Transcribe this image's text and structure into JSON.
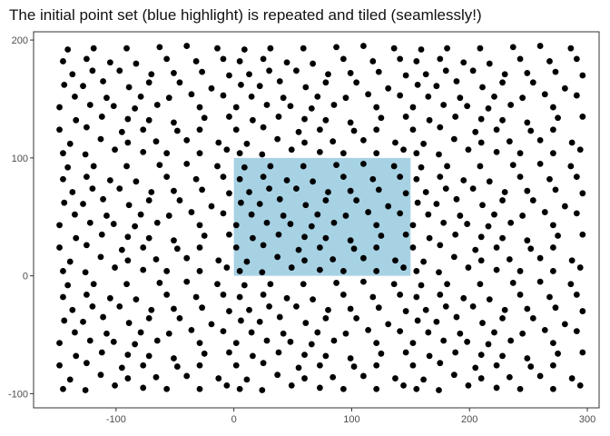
{
  "chart_data": {
    "type": "scatter",
    "title": "The initial point set (blue highlight) is repeated and tiled (seamlessly!)",
    "xlabel": "",
    "ylabel": "",
    "xlim": [
      -170,
      310
    ],
    "ylim": [
      -112,
      207
    ],
    "x_ticks": [
      -100,
      0,
      100,
      200,
      300
    ],
    "y_ticks": [
      -100,
      0,
      100,
      200
    ],
    "grid": false,
    "highlight": {
      "xmin": 0,
      "xmax": 150,
      "ymin": 0,
      "ymax": 100,
      "color": "#a7d2e4"
    },
    "point_color": "#000000",
    "base_tile": [
      [
        9,
        92
      ],
      [
        31,
        93
      ],
      [
        59,
        93
      ],
      [
        87,
        94
      ],
      [
        110,
        95
      ],
      [
        136,
        93
      ],
      [
        5,
        82
      ],
      [
        25,
        84
      ],
      [
        45,
        81
      ],
      [
        67,
        80
      ],
      [
        93,
        84
      ],
      [
        118,
        82
      ],
      [
        141,
        84
      ],
      [
        13,
        71
      ],
      [
        30,
        74
      ],
      [
        53,
        74
      ],
      [
        80,
        71
      ],
      [
        99,
        72
      ],
      [
        123,
        73
      ],
      [
        146,
        70
      ],
      [
        6,
        62
      ],
      [
        22,
        61
      ],
      [
        39,
        65
      ],
      [
        61,
        60
      ],
      [
        78,
        64
      ],
      [
        104,
        64
      ],
      [
        131,
        59
      ],
      [
        15,
        52
      ],
      [
        42,
        51
      ],
      [
        71,
        52
      ],
      [
        95,
        51
      ],
      [
        114,
        54
      ],
      [
        141,
        53
      ],
      [
        2,
        43
      ],
      [
        28,
        45
      ],
      [
        48,
        44
      ],
      [
        66,
        42
      ],
      [
        85,
        45
      ],
      [
        121,
        43
      ],
      [
        16,
        32
      ],
      [
        38,
        35
      ],
      [
        60,
        33
      ],
      [
        78,
        32
      ],
      [
        99,
        30
      ],
      [
        125,
        34
      ],
      [
        146,
        35
      ],
      [
        2,
        24
      ],
      [
        25,
        26
      ],
      [
        55,
        22
      ],
      [
        73,
        24
      ],
      [
        102,
        23
      ],
      [
        121,
        24
      ],
      [
        11,
        12
      ],
      [
        37,
        16
      ],
      [
        60,
        13
      ],
      [
        84,
        14
      ],
      [
        110,
        15
      ],
      [
        137,
        13
      ],
      [
        5,
        4
      ],
      [
        24,
        3
      ],
      [
        49,
        7
      ],
      [
        73,
        5
      ],
      [
        93,
        4
      ],
      [
        121,
        4
      ],
      [
        144,
        7
      ]
    ],
    "tile_offsets_x": [
      -150,
      0,
      150
    ],
    "tile_offsets_y": [
      -100,
      0,
      100
    ]
  }
}
